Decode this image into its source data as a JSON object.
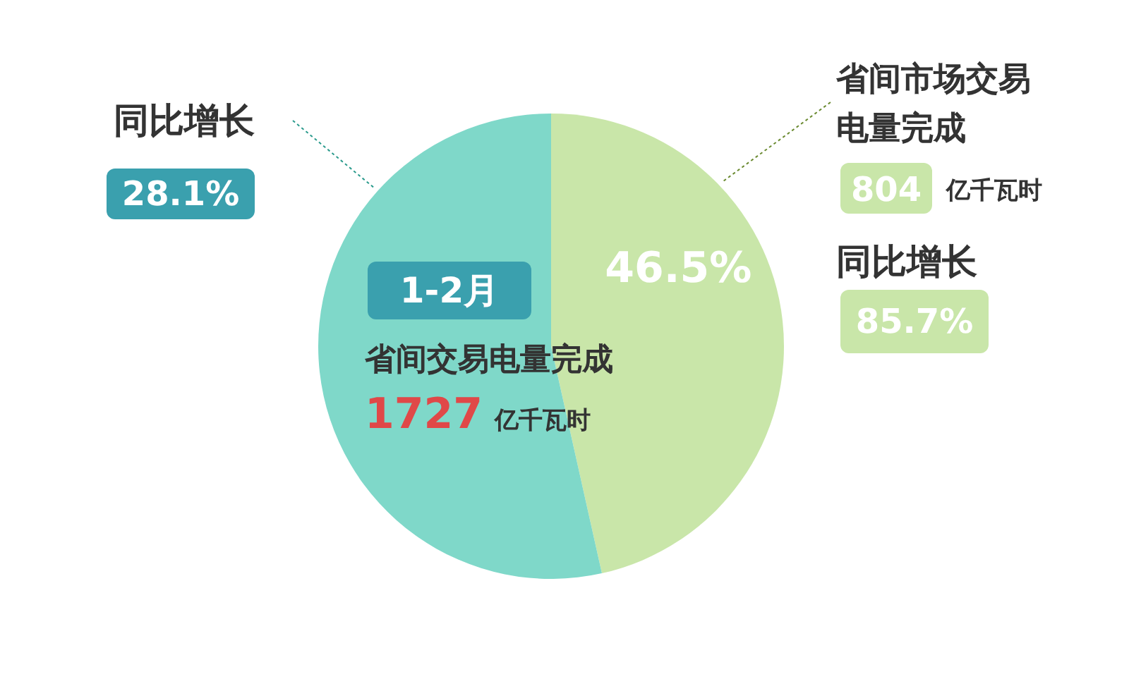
{
  "chart_data": {
    "type": "pie",
    "categories": [
      null,
      null
    ],
    "values": [
      46.5,
      53.5
    ],
    "colors": [
      "#c9e6a9",
      "#7fd8c9"
    ],
    "value_labels": [
      "46.5%",
      null
    ],
    "annotations": [
      "同比增长",
      "28.1%",
      "省间市场交易",
      "电量完成",
      "804",
      "亿千瓦时",
      "同比增长",
      "85.7%",
      "1-2月",
      "省间交易电量完成",
      "1727",
      "亿千瓦时"
    ]
  }
}
